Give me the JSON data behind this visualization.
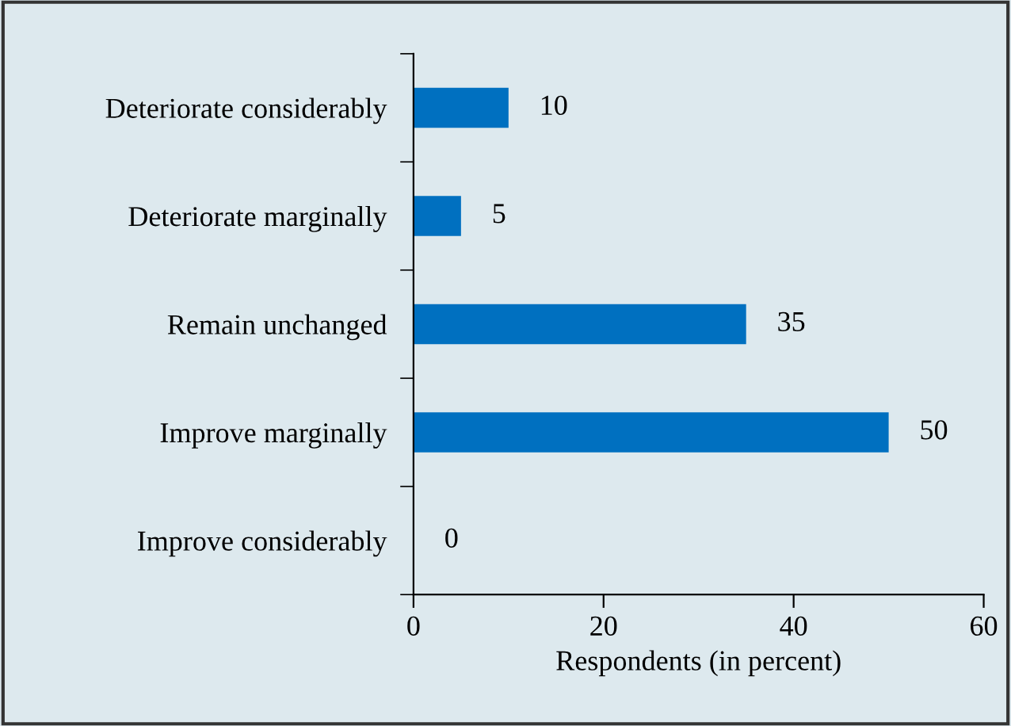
{
  "chart_data": {
    "type": "bar",
    "orientation": "horizontal",
    "categories": [
      "Deteriorate considerably",
      "Deteriorate marginally",
      "Remain unchanged",
      "Improve marginally",
      "Improve considerably"
    ],
    "values": [
      10,
      5,
      35,
      50,
      0
    ],
    "color": "#0070c0",
    "xlabel": "Respondents (in percent)",
    "xlim": [
      0,
      60
    ],
    "xticks": [
      0,
      20,
      40,
      60
    ],
    "data_labels": true,
    "grid": false
  }
}
